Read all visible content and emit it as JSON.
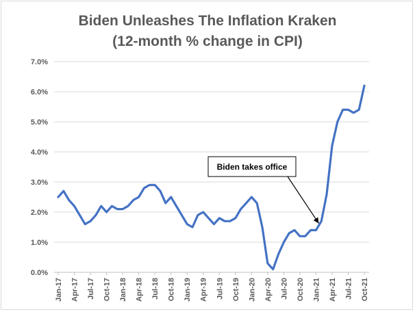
{
  "chart_data": {
    "type": "line",
    "title": "Biden Unleashes The Inflation Kraken",
    "subtitle": "(12-month % change in CPI)",
    "xlabel": "",
    "ylabel": "",
    "ylim": [
      0,
      7
    ],
    "y_ticks": [
      "0.0%",
      "1.0%",
      "2.0%",
      "3.0%",
      "4.0%",
      "5.0%",
      "6.0%",
      "7.0%"
    ],
    "x_tick_labels": [
      "Jan-17",
      "Apr-17",
      "Jul-17",
      "Oct-17",
      "Jan-18",
      "Apr-18",
      "Jul-18",
      "Oct-18",
      "Jan-19",
      "Apr-19",
      "Jul-19",
      "Oct-19",
      "Jan-20",
      "Apr-20",
      "Jul-20",
      "Oct-20",
      "Jan-21",
      "Apr-21",
      "Jul-21",
      "Oct-21"
    ],
    "grid": true,
    "line_color": "#4472c4",
    "annotation": "Biden takes office",
    "annotation_target": "Jan-21",
    "series": [
      {
        "values": [
          2.5,
          2.7,
          2.4,
          2.2,
          1.9,
          1.6,
          1.7,
          1.9,
          2.2,
          2.0,
          2.2,
          2.1,
          2.1,
          2.2,
          2.4,
          2.5,
          2.8,
          2.9,
          2.9,
          2.7,
          2.3,
          2.5,
          2.2,
          1.9,
          1.6,
          1.5,
          1.9,
          2.0,
          1.8,
          1.6,
          1.8,
          1.7,
          1.7,
          1.8,
          2.1,
          2.3,
          2.5,
          2.3,
          1.5,
          0.3,
          0.1,
          0.6,
          1.0,
          1.3,
          1.4,
          1.2,
          1.2,
          1.4,
          1.4,
          1.7,
          2.6,
          4.2,
          5.0,
          5.4,
          5.4,
          5.3,
          5.4,
          6.2
        ]
      }
    ]
  }
}
